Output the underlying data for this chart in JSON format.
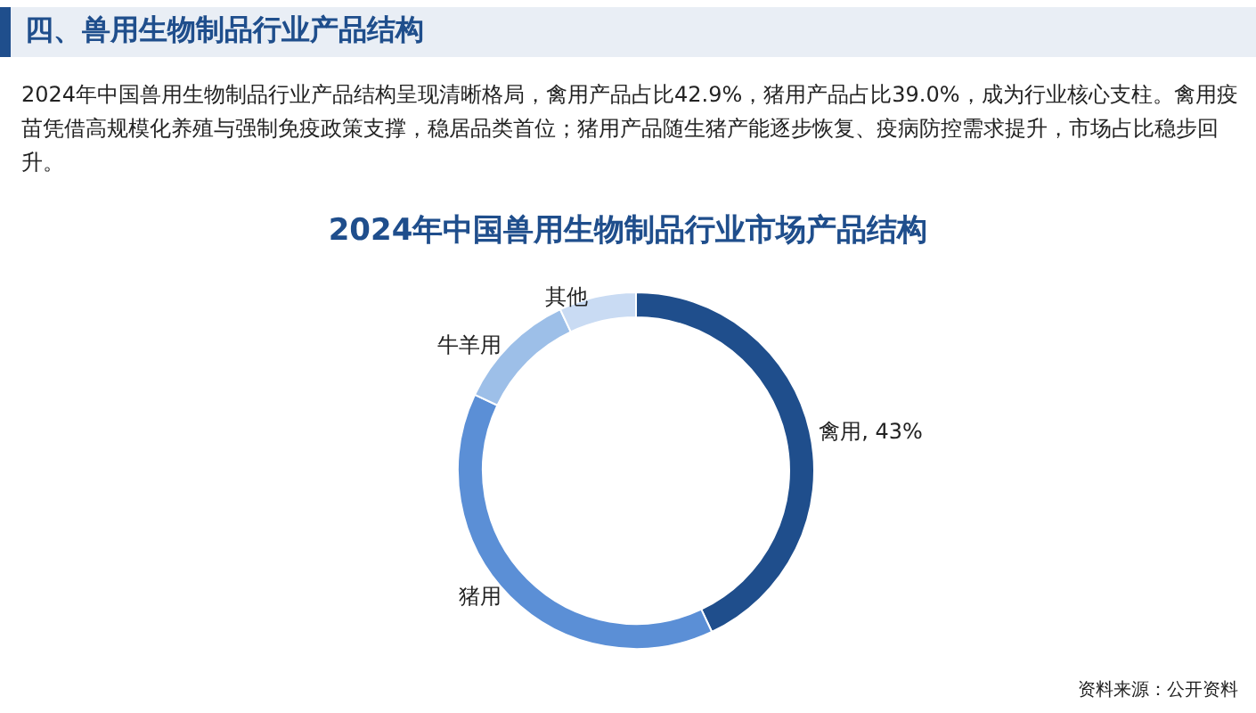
{
  "chart_data": {
    "type": "donut",
    "title": "2024年中国兽用生物制品行业市场产品结构",
    "annotations": [
      "四、兽用生物制品行业产品结构",
      "2024年中国兽用生物制品行业产品结构呈现清晰格局，禽用产品占比42.9%，猪用产品占比39.0%，成为行业核心支柱。禽用疫苗凭借高规模化养殖与强制免疫政策支撑，稳居品类首位；猪用产品随生猪产能逐步恢复、疫病防控需求提升，市场占比稳步回升。",
      "资料来源：公开资料"
    ],
    "categories": [
      "禽用",
      "猪用",
      "牛羊用",
      "其他"
    ],
    "values": [
      43,
      39,
      11,
      7
    ],
    "colors": [
      "#1f4e8c",
      "#5b8fd6",
      "#9dbfe8",
      "#c9dbf3"
    ],
    "value_labels": [
      "43%",
      null,
      null,
      null
    ],
    "legend": false
  }
}
